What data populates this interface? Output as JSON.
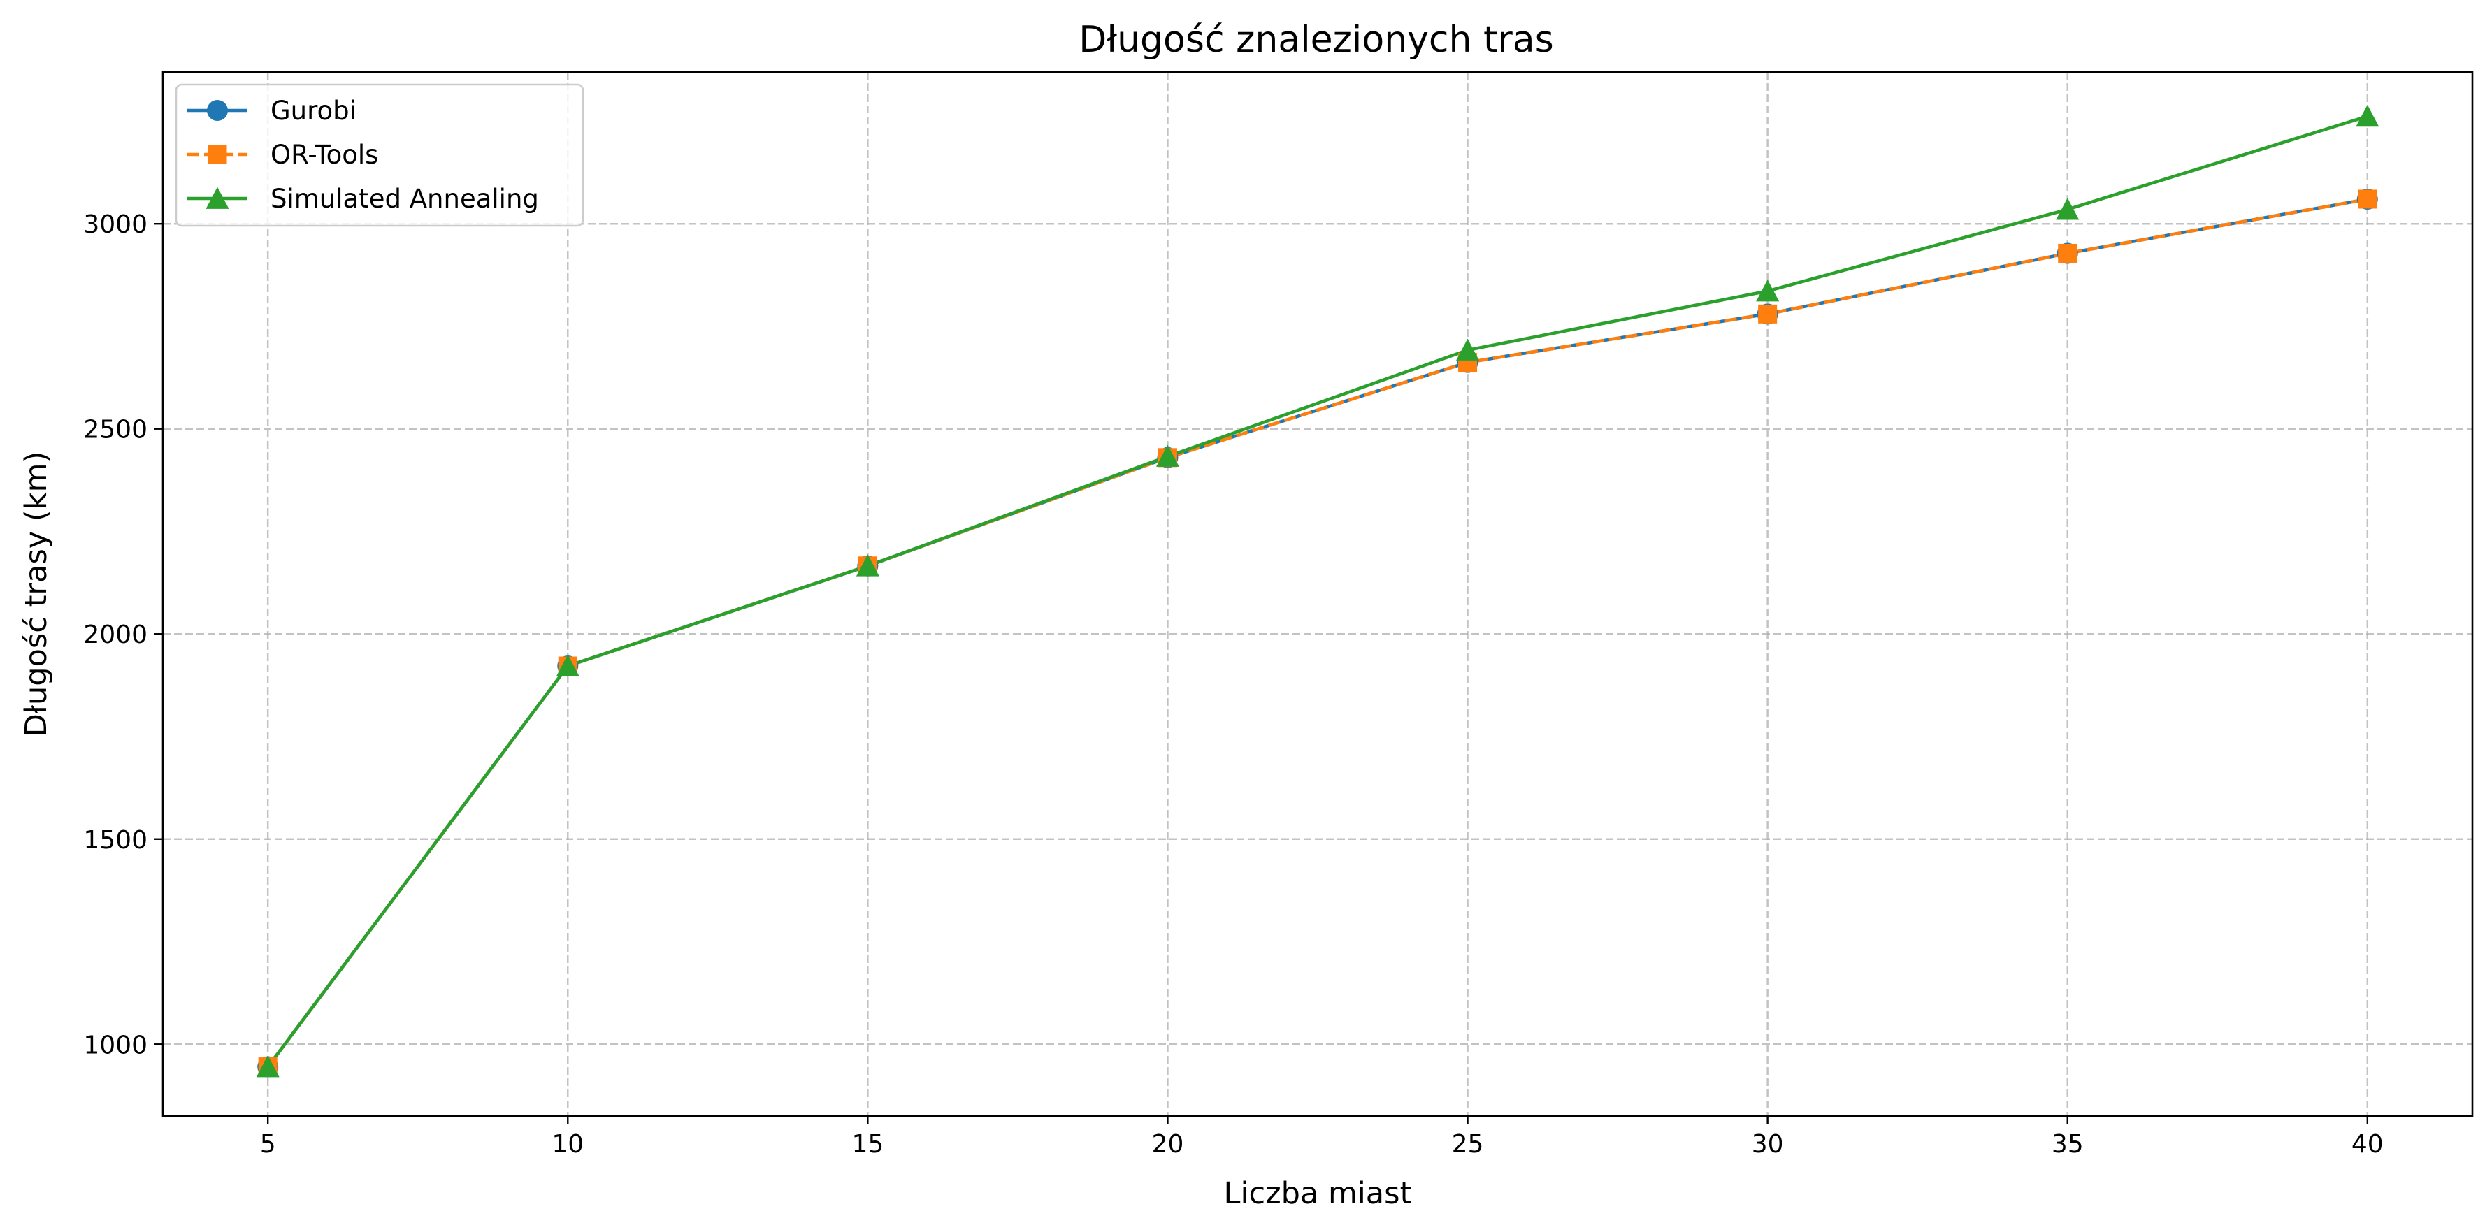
{
  "chart_data": {
    "type": "line",
    "title": "Długość znalezionych tras",
    "xlabel": "Liczba miast",
    "ylabel": "Długość trasy (km)",
    "xlim": [
      3.25,
      41.75
    ],
    "ylim": [
      825,
      3370
    ],
    "x_ticks": [
      5,
      10,
      15,
      20,
      25,
      30,
      35,
      40
    ],
    "y_ticks": [
      1000,
      1500,
      2000,
      2500,
      3000
    ],
    "x_tick_labels": [
      "5",
      "10",
      "15",
      "20",
      "25",
      "30",
      "35",
      "40"
    ],
    "y_tick_labels": [
      "1000",
      "1500",
      "2000",
      "2500",
      "3000"
    ],
    "grid": true,
    "legend_position": "upper-left",
    "x": [
      5,
      10,
      15,
      20,
      25,
      30,
      35,
      40
    ],
    "series": [
      {
        "name": "Gurobi",
        "color": "#1f77b4",
        "marker": "circle",
        "linestyle": "solid",
        "values": [
          945,
          1922,
          2166,
          2430,
          2662,
          2780,
          2928,
          3060
        ]
      },
      {
        "name": "OR-Tools",
        "color": "#ff7f0e",
        "marker": "square",
        "linestyle": "dashed",
        "values": [
          945,
          1922,
          2166,
          2430,
          2662,
          2780,
          2928,
          3060
        ]
      },
      {
        "name": "Simulated Annealing",
        "color": "#2ca02c",
        "marker": "triangle",
        "linestyle": "solid",
        "values": [
          945,
          1922,
          2166,
          2433,
          2692,
          2836,
          3035,
          3262
        ]
      }
    ]
  }
}
